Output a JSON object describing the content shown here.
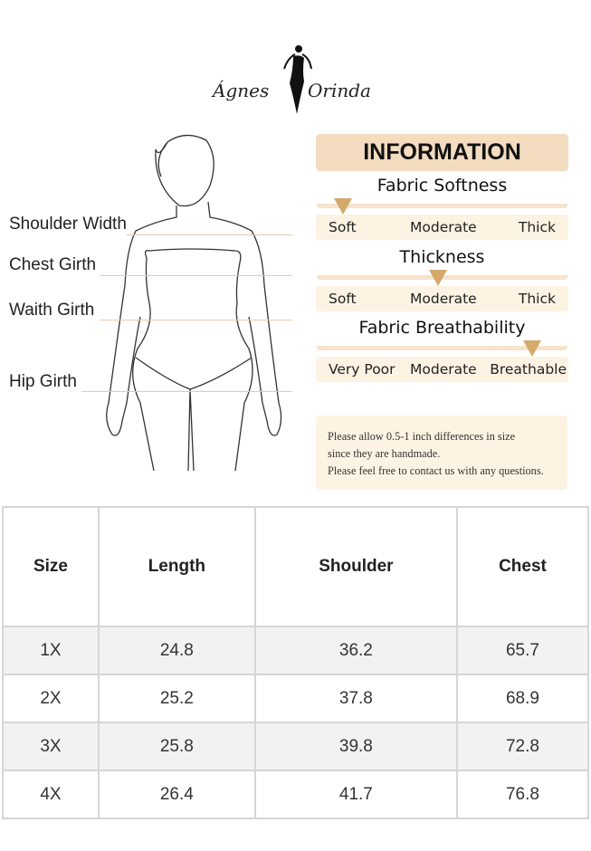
{
  "logo": {
    "text_left": "Ágnes",
    "text_right": "Orinda"
  },
  "measure_labels": [
    "Shoulder Width",
    "Chest Girth",
    "Waith Girth",
    "Hip Girth"
  ],
  "info": {
    "title": "INFORMATION",
    "sliders": [
      {
        "title": "Fabric Softness",
        "labels": [
          "Soft",
          "Moderate",
          "Thick"
        ],
        "level": 0
      },
      {
        "title": "Thickness",
        "labels": [
          "Soft",
          "Moderate",
          "Thick"
        ],
        "level": 0.5
      },
      {
        "title": "Fabric Breathability",
        "labels": [
          "Very Poor",
          "Moderate",
          "Breathable"
        ],
        "level": 1
      }
    ],
    "accent": "#d4a96c",
    "note": [
      "Please allow 0.5-1 inch differences in size",
      "since they are handmade.",
      "Please feel free to contact us with any questions."
    ]
  },
  "table": {
    "headers": [
      "Size",
      "Length",
      "Shoulder",
      "Chest"
    ],
    "rows": [
      [
        "1X",
        "24.8",
        "36.2",
        "65.7"
      ],
      [
        "2X",
        "25.2",
        "37.8",
        "68.9"
      ],
      [
        "3X",
        "25.8",
        "39.8",
        "72.8"
      ],
      [
        "4X",
        "26.4",
        "41.7",
        "76.8"
      ]
    ]
  }
}
